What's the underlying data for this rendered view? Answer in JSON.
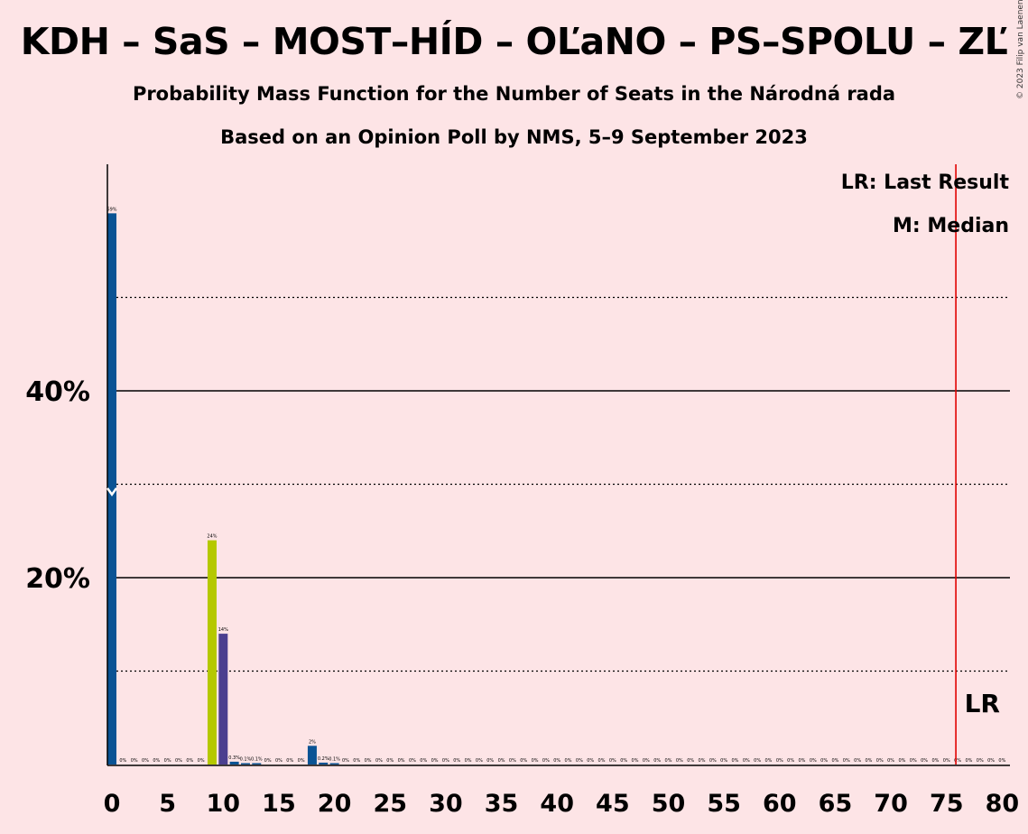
{
  "header": {
    "title": "KDH – SaS – MOST–HÍD – OĽaNO – PS–SPOLU – ZĽ",
    "subtitle": "Probability Mass Function for the Number of Seats in the Národná rada",
    "subtitle2": "Based on an Opinion Poll by NMS, 5–9 September 2023",
    "copyright": "© 2023 Filip van Laenen"
  },
  "legend": {
    "last_result": "LR: Last Result",
    "median": "M: Median"
  },
  "chart_data": {
    "type": "bar",
    "title": "KDH – SaS – MOST–HÍD – OĽaNO – PS–SPOLU – ZĽ",
    "subtitle": "Probability Mass Function for the Number of Seats in the Národná rada",
    "xlabel": "",
    "ylabel": "",
    "xlim": [
      0,
      80
    ],
    "ylim": [
      0,
      62
    ],
    "x_ticks": [
      0,
      5,
      10,
      15,
      20,
      25,
      30,
      35,
      40,
      45,
      50,
      55,
      60,
      65,
      70,
      75,
      80
    ],
    "y_ticks_labeled": [
      20,
      40
    ],
    "y_tick_labels": [
      "20%",
      "40%"
    ],
    "y_gridlines_solid": [
      20,
      40
    ],
    "y_gridlines_dotted": [
      10,
      30,
      50
    ],
    "median_seats": 0,
    "median_marker_value": 29,
    "last_result": 76,
    "last_result_label": "LR",
    "bar_colors": {
      "0": "#0a5394",
      "9": "#b5c800",
      "10": "#4b3f8f",
      "11": "#0a5394",
      "18": "#0a5394",
      "default": "#0a5394"
    },
    "bars": [
      {
        "x": 0,
        "value": 59,
        "label": "59%"
      },
      {
        "x": 1,
        "value": 0,
        "label": "0%"
      },
      {
        "x": 2,
        "value": 0,
        "label": "0%"
      },
      {
        "x": 3,
        "value": 0,
        "label": "0%"
      },
      {
        "x": 4,
        "value": 0,
        "label": "0%"
      },
      {
        "x": 5,
        "value": 0,
        "label": "0%"
      },
      {
        "x": 6,
        "value": 0,
        "label": "0%"
      },
      {
        "x": 7,
        "value": 0,
        "label": "0%"
      },
      {
        "x": 8,
        "value": 0,
        "label": "0%"
      },
      {
        "x": 9,
        "value": 24,
        "label": "24%"
      },
      {
        "x": 10,
        "value": 14,
        "label": "14%"
      },
      {
        "x": 11,
        "value": 0.3,
        "label": "0.3%"
      },
      {
        "x": 12,
        "value": 0.1,
        "label": "0.1%"
      },
      {
        "x": 13,
        "value": 0.1,
        "label": "0.1%"
      },
      {
        "x": 14,
        "value": 0,
        "label": "0%"
      },
      {
        "x": 15,
        "value": 0,
        "label": "0%"
      },
      {
        "x": 16,
        "value": 0,
        "label": "0%"
      },
      {
        "x": 17,
        "value": 0,
        "label": "0%"
      },
      {
        "x": 18,
        "value": 2,
        "label": "2%"
      },
      {
        "x": 19,
        "value": 0.2,
        "label": "0.2%"
      },
      {
        "x": 20,
        "value": 0.1,
        "label": "0.1%"
      },
      {
        "x": 21,
        "value": 0,
        "label": "0%"
      },
      {
        "x": 22,
        "value": 0,
        "label": "0%"
      },
      {
        "x": 23,
        "value": 0,
        "label": "0%"
      },
      {
        "x": 24,
        "value": 0,
        "label": "0%"
      },
      {
        "x": 25,
        "value": 0,
        "label": "0%"
      },
      {
        "x": 26,
        "value": 0,
        "label": "0%"
      },
      {
        "x": 27,
        "value": 0,
        "label": "0%"
      },
      {
        "x": 28,
        "value": 0,
        "label": "0%"
      },
      {
        "x": 29,
        "value": 0,
        "label": "0%"
      },
      {
        "x": 30,
        "value": 0,
        "label": "0%"
      },
      {
        "x": 31,
        "value": 0,
        "label": "0%"
      },
      {
        "x": 32,
        "value": 0,
        "label": "0%"
      },
      {
        "x": 33,
        "value": 0,
        "label": "0%"
      },
      {
        "x": 34,
        "value": 0,
        "label": "0%"
      },
      {
        "x": 35,
        "value": 0,
        "label": "0%"
      },
      {
        "x": 36,
        "value": 0,
        "label": "0%"
      },
      {
        "x": 37,
        "value": 0,
        "label": "0%"
      },
      {
        "x": 38,
        "value": 0,
        "label": "0%"
      },
      {
        "x": 39,
        "value": 0,
        "label": "0%"
      },
      {
        "x": 40,
        "value": 0,
        "label": "0%"
      },
      {
        "x": 41,
        "value": 0,
        "label": "0%"
      },
      {
        "x": 42,
        "value": 0,
        "label": "0%"
      },
      {
        "x": 43,
        "value": 0,
        "label": "0%"
      },
      {
        "x": 44,
        "value": 0,
        "label": "0%"
      },
      {
        "x": 45,
        "value": 0,
        "label": "0%"
      },
      {
        "x": 46,
        "value": 0,
        "label": "0%"
      },
      {
        "x": 47,
        "value": 0,
        "label": "0%"
      },
      {
        "x": 48,
        "value": 0,
        "label": "0%"
      },
      {
        "x": 49,
        "value": 0,
        "label": "0%"
      },
      {
        "x": 50,
        "value": 0,
        "label": "0%"
      },
      {
        "x": 51,
        "value": 0,
        "label": "0%"
      },
      {
        "x": 52,
        "value": 0,
        "label": "0%"
      },
      {
        "x": 53,
        "value": 0,
        "label": "0%"
      },
      {
        "x": 54,
        "value": 0,
        "label": "0%"
      },
      {
        "x": 55,
        "value": 0,
        "label": "0%"
      },
      {
        "x": 56,
        "value": 0,
        "label": "0%"
      },
      {
        "x": 57,
        "value": 0,
        "label": "0%"
      },
      {
        "x": 58,
        "value": 0,
        "label": "0%"
      },
      {
        "x": 59,
        "value": 0,
        "label": "0%"
      },
      {
        "x": 60,
        "value": 0,
        "label": "0%"
      },
      {
        "x": 61,
        "value": 0,
        "label": "0%"
      },
      {
        "x": 62,
        "value": 0,
        "label": "0%"
      },
      {
        "x": 63,
        "value": 0,
        "label": "0%"
      },
      {
        "x": 64,
        "value": 0,
        "label": "0%"
      },
      {
        "x": 65,
        "value": 0,
        "label": "0%"
      },
      {
        "x": 66,
        "value": 0,
        "label": "0%"
      },
      {
        "x": 67,
        "value": 0,
        "label": "0%"
      },
      {
        "x": 68,
        "value": 0,
        "label": "0%"
      },
      {
        "x": 69,
        "value": 0,
        "label": "0%"
      },
      {
        "x": 70,
        "value": 0,
        "label": "0%"
      },
      {
        "x": 71,
        "value": 0,
        "label": "0%"
      },
      {
        "x": 72,
        "value": 0,
        "label": "0%"
      },
      {
        "x": 73,
        "value": 0,
        "label": "0%"
      },
      {
        "x": 74,
        "value": 0,
        "label": "0%"
      },
      {
        "x": 75,
        "value": 0,
        "label": "0%"
      },
      {
        "x": 76,
        "value": 0,
        "label": "0%"
      },
      {
        "x": 77,
        "value": 0,
        "label": "0%"
      },
      {
        "x": 78,
        "value": 0,
        "label": "0%"
      },
      {
        "x": 79,
        "value": 0,
        "label": "0%"
      },
      {
        "x": 80,
        "value": 0,
        "label": "0%"
      }
    ]
  }
}
